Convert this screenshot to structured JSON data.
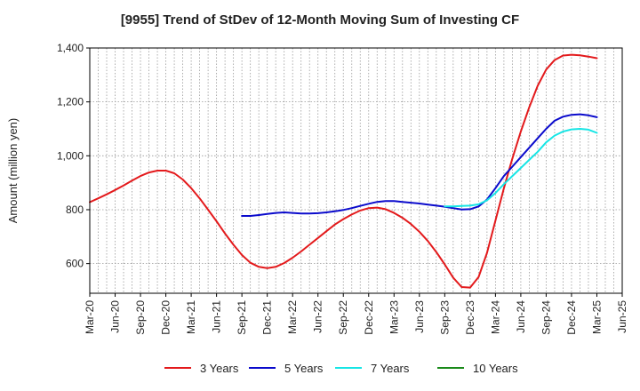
{
  "chart_data": {
    "type": "line",
    "title": "[9955]  Trend of StDev of 12-Month Moving Sum of Investing CF",
    "xlabel": "",
    "ylabel": "Amount (million yen)",
    "ylim": [
      490,
      1400
    ],
    "y_ticks": [
      600,
      800,
      1000,
      1200,
      1400
    ],
    "y_tick_labels": [
      "600",
      "800",
      "1,000",
      "1,200",
      "1,400"
    ],
    "x_start": "2020-03",
    "x_end": "2025-06",
    "x_tick_labels": [
      "Mar-20",
      "Jun-20",
      "Sep-20",
      "Dec-20",
      "Mar-21",
      "Jun-21",
      "Sep-21",
      "Dec-21",
      "Mar-22",
      "Jun-22",
      "Sep-22",
      "Dec-22",
      "Mar-23",
      "Jun-23",
      "Sep-23",
      "Dec-23",
      "Mar-24",
      "Jun-24",
      "Sep-24",
      "Dec-24",
      "Mar-25",
      "Jun-25"
    ],
    "grid": true,
    "legend_position": "bottom",
    "series": [
      {
        "name": "3 Years",
        "color": "#e31a1c",
        "x": [
          "2020-03",
          "2020-04",
          "2020-05",
          "2020-06",
          "2020-07",
          "2020-08",
          "2020-09",
          "2020-10",
          "2020-11",
          "2020-12",
          "2021-01",
          "2021-02",
          "2021-03",
          "2021-04",
          "2021-05",
          "2021-06",
          "2021-07",
          "2021-08",
          "2021-09",
          "2021-10",
          "2021-11",
          "2021-12",
          "2022-01",
          "2022-02",
          "2022-03",
          "2022-04",
          "2022-05",
          "2022-06",
          "2022-07",
          "2022-08",
          "2022-09",
          "2022-10",
          "2022-11",
          "2022-12",
          "2023-01",
          "2023-02",
          "2023-03",
          "2023-04",
          "2023-05",
          "2023-06",
          "2023-07",
          "2023-08",
          "2023-09",
          "2023-10",
          "2023-11",
          "2023-12",
          "2024-01",
          "2024-02",
          "2024-03",
          "2024-04",
          "2024-05",
          "2024-06",
          "2024-07",
          "2024-08",
          "2024-09",
          "2024-10",
          "2024-11",
          "2024-12",
          "2025-01",
          "2025-02",
          "2025-03"
        ],
        "values": [
          828,
          842,
          857,
          873,
          890,
          908,
          925,
          938,
          945,
          945,
          935,
          912,
          880,
          842,
          800,
          757,
          712,
          670,
          632,
          603,
          588,
          583,
          588,
          602,
          622,
          645,
          670,
          695,
          720,
          745,
          765,
          782,
          797,
          806,
          808,
          802,
          788,
          770,
          747,
          718,
          684,
          643,
          597,
          548,
          513,
          511,
          550,
          640,
          760,
          880,
          990,
          1090,
          1180,
          1260,
          1320,
          1355,
          1372,
          1375,
          1373,
          1368,
          1362
        ]
      },
      {
        "name": "5 Years",
        "color": "#0b0bcc",
        "x": [
          "2021-09",
          "2021-10",
          "2021-11",
          "2021-12",
          "2022-01",
          "2022-02",
          "2022-03",
          "2022-04",
          "2022-05",
          "2022-06",
          "2022-07",
          "2022-08",
          "2022-09",
          "2022-10",
          "2022-11",
          "2022-12",
          "2023-01",
          "2023-02",
          "2023-03",
          "2023-04",
          "2023-05",
          "2023-06",
          "2023-07",
          "2023-08",
          "2023-09",
          "2023-10",
          "2023-11",
          "2023-12",
          "2024-01",
          "2024-02",
          "2024-03",
          "2024-04",
          "2024-05",
          "2024-06",
          "2024-07",
          "2024-08",
          "2024-09",
          "2024-10",
          "2024-11",
          "2024-12",
          "2025-01",
          "2025-02",
          "2025-03"
        ],
        "values": [
          777,
          777,
          780,
          784,
          788,
          790,
          788,
          786,
          786,
          787,
          790,
          794,
          799,
          806,
          814,
          822,
          829,
          832,
          832,
          829,
          826,
          823,
          819,
          815,
          811,
          806,
          801,
          802,
          812,
          838,
          880,
          925,
          960,
          995,
          1030,
          1065,
          1100,
          1130,
          1145,
          1152,
          1154,
          1150,
          1143
        ]
      },
      {
        "name": "7 Years",
        "color": "#17e5e5",
        "x": [
          "2023-09",
          "2023-10",
          "2023-11",
          "2023-12",
          "2024-01",
          "2024-02",
          "2024-03",
          "2024-04",
          "2024-05",
          "2024-06",
          "2024-07",
          "2024-08",
          "2024-09",
          "2024-10",
          "2024-11",
          "2024-12",
          "2025-01",
          "2025-02",
          "2025-03"
        ],
        "values": [
          812,
          812,
          814,
          815,
          820,
          835,
          862,
          895,
          925,
          955,
          985,
          1015,
          1050,
          1075,
          1090,
          1098,
          1100,
          1097,
          1085
        ]
      },
      {
        "name": "10 Years",
        "color": "#1a8a1a",
        "x": [],
        "values": []
      }
    ]
  }
}
